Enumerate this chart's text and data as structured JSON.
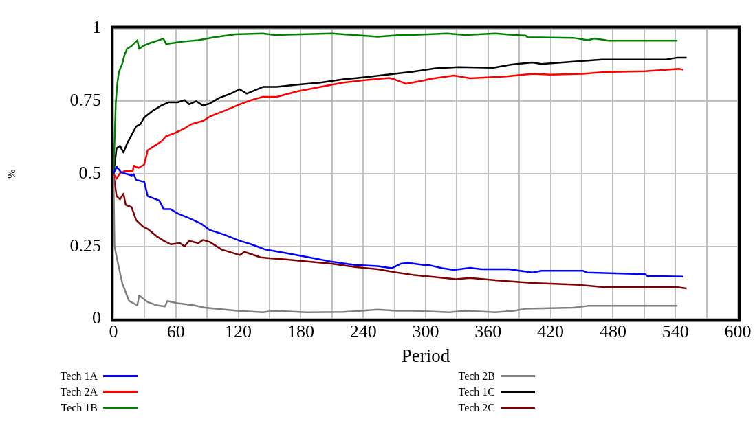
{
  "chart_data": {
    "type": "line",
    "xlabel": "Period",
    "ylabel": "%",
    "xlim": [
      0,
      600
    ],
    "ylim": [
      0,
      1
    ],
    "xticks": [
      0,
      {
        "value": 30,
        "label": null
      },
      60,
      {
        "value": 90,
        "label": null
      },
      120,
      {
        "value": 150,
        "label": null
      },
      180,
      {
        "value": 210,
        "label": null
      },
      240,
      {
        "value": 270,
        "label": null
      },
      300,
      {
        "value": 330,
        "label": null
      },
      360,
      {
        "value": 390,
        "label": null
      },
      420,
      {
        "value": 450,
        "label": null
      },
      480,
      {
        "value": 510,
        "label": null
      },
      540,
      {
        "value": 570,
        "label": null
      },
      600
    ],
    "yticks": [
      0,
      0.25,
      0.5,
      0.75,
      1
    ],
    "grid": true,
    "legend": "bottom",
    "marker": "none",
    "line_style": "solid",
    "series": [
      {
        "name": "Tech 1A",
        "color": "#0000ff",
        "x": [
          0,
          3,
          7.4,
          17.4,
          19.6,
          21.8,
          29.6,
          32.9,
          44,
          48.4,
          55,
          61.7,
          72.7,
          83.8,
          92.6,
          106,
          121.4,
          132.5,
          146,
          165.7,
          188,
          210,
          232,
          254,
          267.5,
          276,
          283,
          298,
          305,
          316,
          327,
          342.7,
          353.8,
          380,
          402.5,
          411.4,
          451,
          455,
          511,
          513,
          547.5
        ],
        "values": [
          0.5,
          0.524,
          0.505,
          0.494,
          0.498,
          0.479,
          0.472,
          0.423,
          0.408,
          0.378,
          0.378,
          0.363,
          0.347,
          0.329,
          0.306,
          0.291,
          0.269,
          0.257,
          0.239,
          0.227,
          0.212,
          0.197,
          0.186,
          0.182,
          0.175,
          0.19,
          0.193,
          0.186,
          0.184,
          0.175,
          0.169,
          0.176,
          0.171,
          0.171,
          0.16,
          0.166,
          0.166,
          0.16,
          0.154,
          0.148,
          0.146
        ]
      },
      {
        "name": "Tech 2A",
        "color": "#ff0000",
        "x": [
          0,
          3,
          6.3,
          10.7,
          18.5,
          19.6,
          24,
          29.6,
          32.9,
          39.4,
          46,
          50.6,
          59.4,
          68.3,
          75,
          86,
          92.6,
          106,
          121.4,
          132.5,
          143.6,
          157,
          176.8,
          199,
          221,
          243,
          265,
          270,
          281,
          298,
          305,
          327,
          342.7,
          378,
          402.5,
          420,
          451,
          471,
          511,
          544,
          547.5
        ],
        "values": [
          0.5,
          0.483,
          0.502,
          0.509,
          0.509,
          0.528,
          0.52,
          0.532,
          0.581,
          0.596,
          0.611,
          0.629,
          0.641,
          0.656,
          0.671,
          0.682,
          0.697,
          0.716,
          0.739,
          0.754,
          0.765,
          0.765,
          0.784,
          0.799,
          0.814,
          0.823,
          0.83,
          0.825,
          0.81,
          0.821,
          0.827,
          0.838,
          0.829,
          0.835,
          0.844,
          0.841,
          0.844,
          0.85,
          0.853,
          0.861,
          0.858
        ]
      },
      {
        "name": "Tech 1B",
        "color": "#008000",
        "x": [
          0,
          2.3,
          3.7,
          5.2,
          8.5,
          10.7,
          13,
          17.4,
          23,
          24.7,
          28.4,
          35,
          48,
          50.6,
          66,
          81.6,
          97,
          117,
          143.6,
          154.7,
          210,
          254,
          276,
          287,
          320.6,
          338,
          367,
          385,
          396,
          398,
          442,
          456,
          462,
          473,
          475.6,
          542
        ],
        "values": [
          0.5,
          0.75,
          0.81,
          0.85,
          0.88,
          0.91,
          0.93,
          0.94,
          0.96,
          0.93,
          0.94,
          0.95,
          0.965,
          0.947,
          0.955,
          0.96,
          0.97,
          0.98,
          0.983,
          0.978,
          0.983,
          0.972,
          0.978,
          0.978,
          0.983,
          0.978,
          0.983,
          0.978,
          0.976,
          0.97,
          0.968,
          0.96,
          0.966,
          0.96,
          0.958,
          0.958
        ]
      },
      {
        "name": "Tech 2B",
        "color": "#808080",
        "x": [
          0,
          1,
          4,
          8.5,
          15,
          23,
          24.7,
          32.9,
          41.7,
          49.5,
          51.7,
          61.7,
          77,
          88,
          119,
          143.6,
          154.7,
          185.6,
          221,
          254,
          272,
          287.4,
          322.8,
          338,
          367,
          385,
          396,
          442,
          456,
          473,
          542
        ],
        "values": [
          0.5,
          0.25,
          0.197,
          0.122,
          0.062,
          0.047,
          0.081,
          0.058,
          0.047,
          0.043,
          0.062,
          0.054,
          0.047,
          0.039,
          0.028,
          0.023,
          0.028,
          0.023,
          0.024,
          0.032,
          0.028,
          0.028,
          0.023,
          0.028,
          0.023,
          0.028,
          0.035,
          0.039,
          0.045,
          0.045,
          0.045
        ]
      },
      {
        "name": "Tech 1C",
        "color": "#000000",
        "x": [
          0,
          3,
          6.3,
          9.6,
          13,
          17.4,
          21.8,
          26,
          29.6,
          37.3,
          46,
          53,
          61.7,
          68.3,
          72.7,
          79.4,
          86,
          92.6,
          101.5,
          112.6,
          121.4,
          128,
          143.6,
          157,
          176.8,
          199,
          221,
          243,
          270,
          287.4,
          309.5,
          331.7,
          364.9,
          382.6,
          402.5,
          411.4,
          442.4,
          469,
          531,
          542,
          550.8
        ],
        "values": [
          0.5,
          0.588,
          0.596,
          0.573,
          0.603,
          0.633,
          0.663,
          0.671,
          0.694,
          0.716,
          0.735,
          0.746,
          0.746,
          0.754,
          0.739,
          0.75,
          0.735,
          0.742,
          0.761,
          0.776,
          0.791,
          0.776,
          0.799,
          0.799,
          0.807,
          0.814,
          0.825,
          0.833,
          0.844,
          0.851,
          0.863,
          0.867,
          0.865,
          0.876,
          0.883,
          0.878,
          0.886,
          0.893,
          0.893,
          0.9,
          0.9
        ]
      },
      {
        "name": "Tech 2C",
        "color": "#800000",
        "x": [
          0,
          3,
          6.3,
          9.6,
          11.8,
          17.4,
          21.8,
          28.4,
          32.9,
          41.7,
          48.4,
          55,
          64,
          68.3,
          72.7,
          81.6,
          86,
          92.6,
          104,
          121.4,
          125.9,
          141.4,
          150,
          165.7,
          188,
          210,
          232,
          254,
          272,
          287.4,
          309.5,
          329,
          342.7,
          369,
          402.5,
          444.6,
          471,
          541,
          550.8
        ],
        "values": [
          0.5,
          0.423,
          0.412,
          0.431,
          0.393,
          0.385,
          0.34,
          0.318,
          0.31,
          0.284,
          0.269,
          0.257,
          0.261,
          0.25,
          0.269,
          0.261,
          0.272,
          0.265,
          0.239,
          0.22,
          0.231,
          0.212,
          0.209,
          0.205,
          0.197,
          0.19,
          0.179,
          0.171,
          0.16,
          0.152,
          0.144,
          0.137,
          0.141,
          0.133,
          0.124,
          0.118,
          0.11,
          0.11,
          0.105
        ]
      }
    ]
  }
}
